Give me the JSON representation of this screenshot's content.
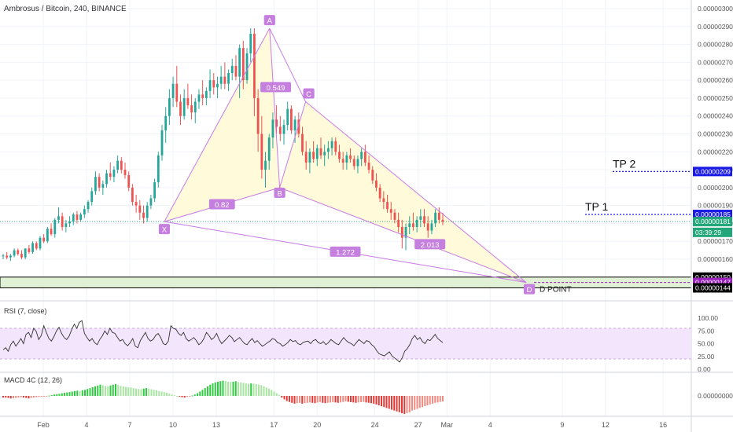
{
  "header": {
    "symbol": "Ambrosus / Bitcoin, 240, BINANCE"
  },
  "chart_data": {
    "type": "candlestick",
    "price_axis": {
      "range": [
        1.4e-06,
        3.01e-06
      ],
      "ticks": [
        "0.00000300",
        "0.00000290",
        "0.00000280",
        "0.00000270",
        "0.00000260",
        "0.00000250",
        "0.00000240",
        "0.00000230",
        "0.00000220",
        "0.00000210",
        "0.00000200",
        "0.00000190",
        "0.00000180",
        "0.00000170",
        "0.00000160"
      ],
      "tick_values": [
        3.0,
        2.9,
        2.8,
        2.7,
        2.6,
        2.5,
        2.4,
        2.3,
        2.2,
        2.1,
        2.0,
        1.9,
        1.8,
        1.7,
        1.6
      ]
    },
    "date_axis": {
      "range_days": [
        -1,
        46
      ],
      "tick_labels": [
        "Feb",
        "4",
        "7",
        "10",
        "13",
        "17",
        "20",
        "24",
        "27",
        "Mar",
        "4",
        "9",
        "12",
        "16"
      ],
      "tick_day": [
        0,
        3,
        6,
        9,
        12,
        16,
        19,
        23,
        26,
        28,
        31,
        36,
        39,
        43
      ]
    },
    "price_badges": [
      {
        "text": "0.00000209",
        "price": 2.09,
        "color": "#1a1ae6"
      },
      {
        "text": "0.00000185",
        "price": 1.85,
        "color": "#1a1ae6"
      },
      {
        "text": "0.00000181",
        "price": 1.81,
        "color": "#22a67a"
      },
      {
        "text": "03:39:29",
        "price": 1.75,
        "color": "#22a67a"
      },
      {
        "text": "0.00000150",
        "price": 1.5,
        "color": "#000000"
      },
      {
        "text": "0.00000147",
        "price": 1.47,
        "color": "#9b1fbf"
      },
      {
        "text": "0.00000144",
        "price": 1.44,
        "color": "#000000"
      }
    ],
    "pattern": {
      "points": [
        {
          "label": "X",
          "day": 8.4,
          "price": 1.81
        },
        {
          "label": "A",
          "day": 15.7,
          "price": 2.89
        },
        {
          "label": "B",
          "day": 16.4,
          "price": 2.0
        },
        {
          "label": "C",
          "day": 18.2,
          "price": 2.48
        },
        {
          "label": "D",
          "day": 33.5,
          "price": 1.47
        }
      ],
      "ratios": [
        "0.549",
        "0.82",
        "1.272",
        "2.013"
      ],
      "d_point_label": "D POINT"
    },
    "targets": [
      {
        "label": "TP 2",
        "price": 2.09
      },
      {
        "label": "TP 1",
        "price": 1.85
      }
    ],
    "zone": {
      "top": 1.5,
      "bottom": 1.44
    },
    "current_price": 1.81,
    "rsi": {
      "title": "RSI (7, close)",
      "ticks": [
        "100.00",
        "75.00",
        "50.00",
        "25.00",
        "0.00"
      ],
      "tick_values": [
        100,
        75,
        50,
        25,
        0
      ],
      "band": [
        20,
        80
      ],
      "values": [
        38,
        42,
        35,
        48,
        55,
        45,
        52,
        60,
        50,
        68,
        72,
        62,
        80,
        74,
        58,
        66,
        85,
        72,
        60,
        55,
        64,
        75,
        82,
        70,
        62,
        58,
        65,
        78,
        88,
        80,
        92,
        95,
        70,
        62,
        55,
        60,
        52,
        48,
        58,
        65,
        75,
        68,
        80,
        72,
        70,
        62,
        55,
        58,
        50,
        46,
        52,
        60,
        45,
        42,
        56,
        64,
        72,
        60,
        55,
        58,
        66,
        70,
        62,
        50,
        48,
        55,
        85,
        80,
        78,
        70,
        66,
        72,
        60,
        55,
        58,
        62,
        56,
        48,
        52,
        60,
        72,
        66,
        58,
        62,
        70,
        58,
        50,
        55,
        60,
        66,
        62,
        54,
        58,
        62,
        56,
        50,
        48,
        55,
        60,
        52,
        56,
        50,
        45,
        48,
        52,
        55,
        60,
        58,
        52,
        50,
        45,
        48,
        52,
        58,
        54,
        56,
        50,
        48,
        52,
        54,
        55,
        50,
        56,
        58,
        52,
        50,
        54,
        48,
        52,
        58,
        54,
        50,
        48,
        55,
        62,
        56,
        52,
        50,
        46,
        52,
        58,
        54,
        50,
        56,
        54,
        48,
        44,
        36,
        30,
        28,
        26,
        30,
        34,
        26,
        22,
        18,
        14,
        22,
        35,
        40,
        48,
        60,
        66,
        58,
        62,
        54,
        50,
        58,
        56,
        62,
        68,
        60,
        56,
        52
      ]
    },
    "macd": {
      "title": "MACD 4C (12, 26)",
      "ticks": [
        "0.00000000"
      ],
      "values": [
        -0.1,
        -0.1,
        -0.12,
        -0.15,
        -0.14,
        -0.12,
        -0.1,
        -0.08,
        -0.1,
        -0.12,
        -0.15,
        -0.12,
        -0.1,
        -0.08,
        -0.06,
        -0.05,
        -0.04,
        -0.02,
        0.02,
        0.05,
        0.08,
        0.1,
        0.12,
        0.15,
        0.18,
        0.2,
        0.22,
        0.25,
        0.28,
        0.3,
        0.28,
        0.32,
        0.35,
        0.4,
        0.45,
        0.5,
        0.55,
        0.6,
        0.65,
        0.62,
        0.58,
        0.55,
        0.6,
        0.65,
        0.68,
        0.62,
        0.58,
        0.55,
        0.52,
        0.5,
        0.48,
        0.45,
        0.42,
        0.4,
        0.38,
        0.42,
        0.45,
        0.42,
        0.38,
        0.35,
        0.32,
        0.28,
        0.25,
        0.22,
        0.18,
        0.12,
        0.08,
        0.04,
        0.0,
        -0.04,
        -0.08,
        -0.1,
        -0.06,
        -0.02,
        0.02,
        0.08,
        0.15,
        0.25,
        0.35,
        0.45,
        0.55,
        0.65,
        0.72,
        0.78,
        0.82,
        0.85,
        0.88,
        0.85,
        0.82,
        0.8,
        0.82,
        0.85,
        0.8,
        0.78,
        0.75,
        0.72,
        0.7,
        0.72,
        0.7,
        0.68,
        0.65,
        0.62,
        0.55,
        0.48,
        0.42,
        0.35,
        0.25,
        0.15,
        0.05,
        -0.1,
        -0.2,
        -0.3,
        -0.35,
        -0.4,
        -0.45,
        -0.42,
        -0.4,
        -0.45,
        -0.42,
        -0.4,
        -0.38,
        -0.4,
        -0.42,
        -0.38,
        -0.35,
        -0.4,
        -0.42,
        -0.4,
        -0.38,
        -0.36,
        -0.38,
        -0.4,
        -0.38,
        -0.35,
        -0.32,
        -0.34,
        -0.36,
        -0.38,
        -0.4,
        -0.38,
        -0.36,
        -0.35,
        -0.38,
        -0.4,
        -0.42,
        -0.45,
        -0.5,
        -0.55,
        -0.6,
        -0.65,
        -0.7,
        -0.75,
        -0.8,
        -0.85,
        -0.9,
        -0.95,
        -1.0,
        -1.05,
        -1.0,
        -0.95,
        -0.85,
        -0.8,
        -0.75,
        -0.7,
        -0.65,
        -0.6,
        -0.55,
        -0.5,
        -0.45,
        -0.4,
        -0.38,
        -0.35,
        -0.32
      ]
    },
    "candles": [
      [
        1.62,
        1.63,
        1.6,
        1.62
      ],
      [
        1.62,
        1.64,
        1.6,
        1.61
      ],
      [
        1.61,
        1.63,
        1.59,
        1.62
      ],
      [
        1.62,
        1.66,
        1.61,
        1.65
      ],
      [
        1.65,
        1.66,
        1.62,
        1.63
      ],
      [
        1.63,
        1.65,
        1.6,
        1.61
      ],
      [
        1.61,
        1.66,
        1.6,
        1.66
      ],
      [
        1.66,
        1.68,
        1.63,
        1.64
      ],
      [
        1.64,
        1.7,
        1.63,
        1.69
      ],
      [
        1.69,
        1.7,
        1.65,
        1.66
      ],
      [
        1.66,
        1.73,
        1.65,
        1.72
      ],
      [
        1.72,
        1.74,
        1.69,
        1.7
      ],
      [
        1.7,
        1.78,
        1.69,
        1.77
      ],
      [
        1.77,
        1.8,
        1.73,
        1.74
      ],
      [
        1.74,
        1.83,
        1.72,
        1.82
      ],
      [
        1.82,
        1.89,
        1.8,
        1.84
      ],
      [
        1.84,
        1.86,
        1.76,
        1.78
      ],
      [
        1.78,
        1.82,
        1.75,
        1.8
      ],
      [
        1.8,
        1.84,
        1.78,
        1.81
      ],
      [
        1.81,
        1.86,
        1.79,
        1.85
      ],
      [
        1.85,
        1.87,
        1.8,
        1.82
      ],
      [
        1.82,
        1.86,
        1.81,
        1.85
      ],
      [
        1.85,
        1.9,
        1.83,
        1.88
      ],
      [
        1.88,
        1.93,
        1.86,
        1.92
      ],
      [
        1.92,
        2.0,
        1.9,
        1.98
      ],
      [
        1.98,
        2.09,
        1.96,
        2.06
      ],
      [
        2.06,
        2.08,
        1.98,
        2.0
      ],
      [
        2.0,
        2.04,
        1.96,
        2.02
      ],
      [
        2.02,
        2.1,
        2.0,
        2.08
      ],
      [
        2.08,
        2.14,
        2.04,
        2.06
      ],
      [
        2.06,
        2.12,
        2.03,
        2.1
      ],
      [
        2.1,
        2.18,
        2.08,
        2.15
      ],
      [
        2.15,
        2.17,
        2.08,
        2.1
      ],
      [
        2.1,
        2.14,
        2.05,
        2.07
      ],
      [
        2.07,
        2.09,
        1.98,
        2.0
      ],
      [
        2.0,
        2.02,
        1.9,
        1.92
      ],
      [
        1.92,
        1.96,
        1.86,
        1.9
      ],
      [
        1.9,
        1.93,
        1.82,
        1.86
      ],
      [
        1.86,
        1.9,
        1.8,
        1.83
      ],
      [
        1.83,
        1.92,
        1.81,
        1.9
      ],
      [
        1.9,
        1.96,
        1.88,
        1.94
      ],
      [
        1.94,
        2.05,
        1.92,
        2.03
      ],
      [
        2.03,
        2.2,
        2.0,
        2.18
      ],
      [
        2.18,
        2.35,
        2.15,
        2.32
      ],
      [
        2.32,
        2.45,
        2.25,
        2.4
      ],
      [
        2.4,
        2.55,
        2.35,
        2.5
      ],
      [
        2.5,
        2.62,
        2.45,
        2.58
      ],
      [
        2.58,
        2.68,
        2.45,
        2.48
      ],
      [
        2.48,
        2.52,
        2.35,
        2.4
      ],
      [
        2.4,
        2.55,
        2.38,
        2.5
      ],
      [
        2.5,
        2.58,
        2.44,
        2.46
      ],
      [
        2.46,
        2.52,
        2.38,
        2.42
      ],
      [
        2.42,
        2.5,
        2.36,
        2.48
      ],
      [
        2.48,
        2.55,
        2.44,
        2.52
      ],
      [
        2.52,
        2.6,
        2.46,
        2.5
      ],
      [
        2.5,
        2.56,
        2.46,
        2.54
      ],
      [
        2.54,
        2.66,
        2.5,
        2.6
      ],
      [
        2.6,
        2.64,
        2.52,
        2.56
      ],
      [
        2.56,
        2.62,
        2.5,
        2.58
      ],
      [
        2.58,
        2.68,
        2.55,
        2.62
      ],
      [
        2.62,
        2.7,
        2.55,
        2.58
      ],
      [
        2.58,
        2.66,
        2.54,
        2.64
      ],
      [
        2.64,
        2.72,
        2.6,
        2.68
      ],
      [
        2.68,
        2.74,
        2.6,
        2.62
      ],
      [
        2.62,
        2.8,
        2.5,
        2.78
      ],
      [
        2.78,
        2.82,
        2.55,
        2.6
      ],
      [
        2.6,
        2.78,
        2.58,
        2.75
      ],
      [
        2.75,
        2.89,
        2.7,
        2.86
      ],
      [
        2.86,
        2.89,
        2.4,
        2.5
      ],
      [
        2.5,
        2.55,
        2.2,
        2.3
      ],
      [
        2.3,
        2.4,
        2.05,
        2.1
      ],
      [
        2.1,
        2.2,
        2.0,
        2.15
      ],
      [
        2.15,
        2.3,
        2.1,
        2.28
      ],
      [
        2.28,
        2.42,
        2.22,
        2.38
      ],
      [
        2.38,
        2.46,
        2.3,
        2.34
      ],
      [
        2.34,
        2.4,
        2.26,
        2.3
      ],
      [
        2.3,
        2.38,
        2.24,
        2.35
      ],
      [
        2.35,
        2.48,
        2.32,
        2.44
      ],
      [
        2.44,
        2.46,
        2.3,
        2.32
      ],
      [
        2.32,
        2.4,
        2.25,
        2.38
      ],
      [
        2.38,
        2.42,
        2.28,
        2.3
      ],
      [
        2.3,
        2.34,
        2.18,
        2.2
      ],
      [
        2.2,
        2.26,
        2.1,
        2.14
      ],
      [
        2.14,
        2.22,
        2.08,
        2.2
      ],
      [
        2.2,
        2.26,
        2.14,
        2.16
      ],
      [
        2.16,
        2.24,
        2.12,
        2.22
      ],
      [
        2.22,
        2.28,
        2.16,
        2.18
      ],
      [
        2.18,
        2.24,
        2.12,
        2.2
      ],
      [
        2.2,
        2.26,
        2.16,
        2.22
      ],
      [
        2.22,
        2.28,
        2.18,
        2.26
      ],
      [
        2.26,
        2.28,
        2.18,
        2.2
      ],
      [
        2.2,
        2.24,
        2.14,
        2.16
      ],
      [
        2.16,
        2.2,
        2.1,
        2.14
      ],
      [
        2.14,
        2.2,
        2.1,
        2.18
      ],
      [
        2.18,
        2.22,
        2.14,
        2.16
      ],
      [
        2.16,
        2.18,
        2.1,
        2.12
      ],
      [
        2.12,
        2.18,
        2.08,
        2.16
      ],
      [
        2.16,
        2.22,
        2.12,
        2.2
      ],
      [
        2.2,
        2.24,
        2.12,
        2.14
      ],
      [
        2.14,
        2.18,
        2.08,
        2.1
      ],
      [
        2.1,
        2.12,
        2.02,
        2.04
      ],
      [
        2.04,
        2.08,
        1.98,
        2.0
      ],
      [
        2.0,
        2.02,
        1.92,
        1.94
      ],
      [
        1.94,
        1.98,
        1.88,
        1.92
      ],
      [
        1.92,
        1.96,
        1.86,
        1.88
      ],
      [
        1.88,
        1.92,
        1.82,
        1.86
      ],
      [
        1.86,
        1.88,
        1.8,
        1.82
      ],
      [
        1.82,
        1.86,
        1.75,
        1.78
      ],
      [
        1.78,
        1.82,
        1.66,
        1.72
      ],
      [
        1.72,
        1.8,
        1.65,
        1.78
      ],
      [
        1.78,
        1.84,
        1.74,
        1.8
      ],
      [
        1.8,
        1.86,
        1.76,
        1.78
      ],
      [
        1.78,
        1.84,
        1.75,
        1.82
      ],
      [
        1.82,
        1.88,
        1.78,
        1.84
      ],
      [
        1.84,
        1.88,
        1.78,
        1.8
      ],
      [
        1.8,
        1.84,
        1.72,
        1.76
      ],
      [
        1.76,
        1.82,
        1.74,
        1.8
      ],
      [
        1.8,
        1.88,
        1.78,
        1.86
      ],
      [
        1.86,
        1.89,
        1.8,
        1.82
      ],
      [
        1.82,
        1.86,
        1.79,
        1.81
      ]
    ]
  }
}
